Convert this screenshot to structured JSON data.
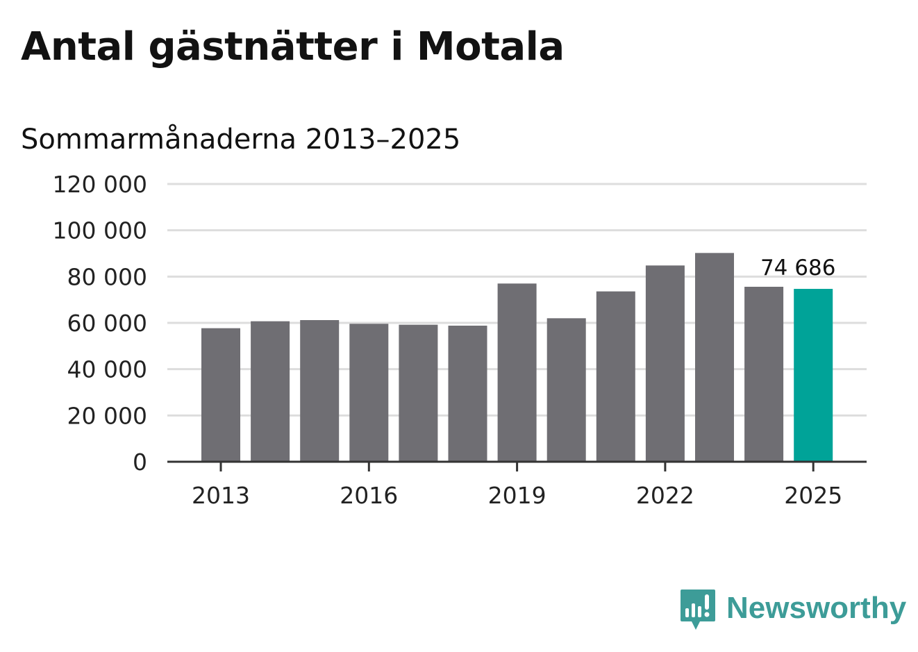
{
  "title": "Antal gästnätter i Motala",
  "subtitle": "Sommarmånaderna 2013–2025",
  "brand": {
    "name": "Newsworthy",
    "color": "#3d9c98",
    "icon": "newsworthy-chart-bubble-icon"
  },
  "colors": {
    "bar": "#6f6e73",
    "highlight": "#00a398",
    "grid": "#dddddd",
    "axis": "#333333",
    "text": "#222222"
  },
  "chart_data": {
    "type": "bar",
    "categories": [
      "2013",
      "2014",
      "2015",
      "2016",
      "2017",
      "2018",
      "2019",
      "2020",
      "2021",
      "2022",
      "2023",
      "2024",
      "2025"
    ],
    "values": [
      57700,
      60700,
      61200,
      59600,
      59200,
      58800,
      77000,
      62000,
      73600,
      84800,
      90200,
      75600,
      74686
    ],
    "highlight_index": 12,
    "value_label": "74 686",
    "x_tick_labels": [
      "2013",
      "2016",
      "2019",
      "2022",
      "2025"
    ],
    "y_ticks": [
      0,
      20000,
      40000,
      60000,
      80000,
      100000,
      120000
    ],
    "y_tick_labels": [
      "0",
      "20 000",
      "40 000",
      "60 000",
      "80 000",
      "100 000",
      "120 000"
    ],
    "ylim": [
      0,
      120000
    ],
    "grid": true,
    "xlabel": "",
    "ylabel": ""
  }
}
